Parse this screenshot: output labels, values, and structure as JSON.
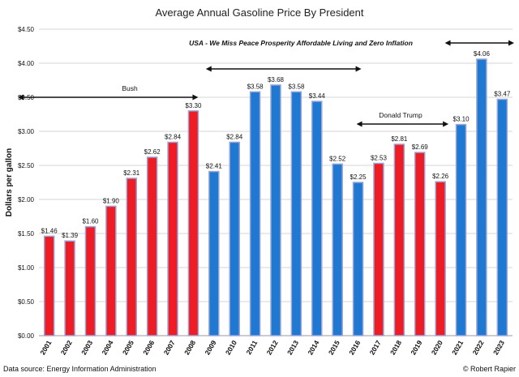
{
  "chart_data": {
    "type": "bar",
    "title": "Average Annual Gasoline Price By President",
    "ylabel": "Dollars per gallon",
    "xlabel": "",
    "ylim": [
      0,
      4.5
    ],
    "yticks": [
      "$0.00",
      "$0.50",
      "$1.00",
      "$1.50",
      "$2.00",
      "$2.50",
      "$3.00",
      "$3.50",
      "$4.00",
      "$4.50"
    ],
    "grid": true,
    "categories": [
      "2001",
      "2002",
      "2003",
      "2004",
      "2005",
      "2006",
      "2007",
      "2008",
      "2009",
      "2010",
      "2011",
      "2012",
      "2013",
      "2014",
      "2015",
      "2016",
      "2017",
      "2018",
      "2019",
      "2020",
      "2021",
      "2022",
      "2023"
    ],
    "values": [
      1.46,
      1.39,
      1.6,
      1.9,
      2.31,
      2.62,
      2.84,
      3.3,
      2.41,
      2.84,
      3.58,
      3.68,
      3.58,
      3.44,
      2.52,
      2.25,
      2.53,
      2.81,
      2.69,
      2.26,
      3.1,
      4.06,
      3.47
    ],
    "data_labels": [
      "$1.46",
      "$1.39",
      "$1.60",
      "$1.90",
      "$2.31",
      "$2.62",
      "$2.84",
      "$3.30",
      "$2.41",
      "$2.84",
      "$3.58",
      "$3.68",
      "$3.58",
      "$3.44",
      "$2.52",
      "$2.25",
      "$2.53",
      "$2.81",
      "$2.69",
      "$2.26",
      "$3.10",
      "$4.06",
      "$3.47"
    ],
    "bar_colors": [
      "red",
      "red",
      "red",
      "red",
      "red",
      "red",
      "red",
      "red",
      "blue",
      "blue",
      "blue",
      "blue",
      "blue",
      "blue",
      "blue",
      "blue",
      "red",
      "red",
      "red",
      "red",
      "blue",
      "blue",
      "blue"
    ],
    "colors": {
      "red": "#ee1c25",
      "blue": "#1f78d1",
      "outline": "#9aa6d8"
    },
    "annotations": [
      {
        "text": "Bush",
        "from": "2001",
        "to": "2008"
      },
      {
        "text": "USA - We  Miss Peace Prosperity Affordable Living and Zero Inflation",
        "from": "2009",
        "to": "2016"
      },
      {
        "text": "Donald Trump",
        "from": "2016",
        "to": "2020"
      },
      {
        "text": "",
        "from": "2021",
        "to": "2023"
      }
    ]
  },
  "footer": {
    "source": "Data source: Energy Information Administration",
    "credit": "© Robert Rapier"
  }
}
